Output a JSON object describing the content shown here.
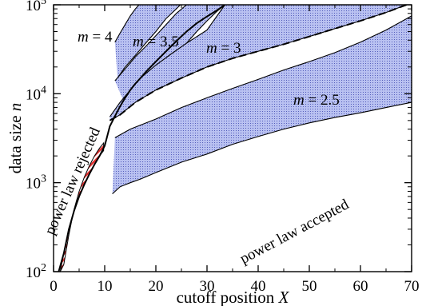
{
  "chart_data": {
    "type": "area",
    "xlabel": "cutoff position X",
    "xlabel_text": "cutoff position ",
    "xlabel_var": "X",
    "ylabel_text": "data size ",
    "ylabel_var": "n",
    "xlim": [
      0,
      70
    ],
    "ylim": [
      100,
      100000
    ],
    "yscale": "log",
    "x_ticks": [
      0,
      10,
      20,
      30,
      40,
      50,
      60,
      70
    ],
    "x_tick_labels": [
      "0",
      "10",
      "20",
      "30",
      "40",
      "50",
      "60",
      "70"
    ],
    "y_ticks": [
      100,
      1000,
      10000,
      100000
    ],
    "y_tick_base": "10",
    "y_tick_exponents": [
      "2",
      "3",
      "4",
      "5"
    ],
    "colors": {
      "band_fill": "#b8c0f0",
      "band_edge": "#1a1a8c",
      "hatch_fill": "#e03030",
      "line": "#000000"
    },
    "regions": [
      {
        "label_var": "m",
        "label_value": "= 4",
        "upper": [
          [
            12,
            38000
          ],
          [
            13,
            48000
          ],
          [
            14,
            60000
          ],
          [
            15,
            75000
          ],
          [
            16,
            90000
          ],
          [
            16.7,
            100000
          ]
        ],
        "lower": [
          [
            12.5,
            15000
          ],
          [
            14,
            20000
          ],
          [
            16,
            27000
          ],
          [
            18,
            37000
          ],
          [
            20,
            50000
          ],
          [
            22,
            70000
          ],
          [
            24,
            90000
          ],
          [
            24.8,
            100000
          ]
        ]
      },
      {
        "label_var": "m",
        "label_value": "= 3.5",
        "upper": [
          [
            12,
            14000
          ],
          [
            14,
            19000
          ],
          [
            16,
            26000
          ],
          [
            18,
            34000
          ],
          [
            20,
            45000
          ],
          [
            22,
            60000
          ],
          [
            24,
            80000
          ],
          [
            26,
            100000
          ]
        ],
        "lower": [
          [
            14,
            7500
          ],
          [
            16,
            9500
          ],
          [
            18,
            12000
          ],
          [
            20,
            16000
          ],
          [
            22,
            21000
          ],
          [
            24,
            28000
          ],
          [
            26,
            37000
          ],
          [
            28,
            50000
          ],
          [
            30,
            66000
          ],
          [
            32,
            85000
          ],
          [
            33.5,
            100000
          ]
        ]
      },
      {
        "label_var": "m",
        "label_value": "= 3",
        "upper": [
          [
            11,
            5500
          ],
          [
            13,
            8000
          ],
          [
            15,
            11000
          ],
          [
            17,
            15000
          ],
          [
            20,
            21000
          ],
          [
            23,
            28000
          ],
          [
            26,
            37000
          ],
          [
            30,
            52000
          ],
          [
            33.5,
            100000
          ]
        ],
        "lower": [
          [
            11,
            5000
          ],
          [
            13,
            5800
          ],
          [
            16,
            8000
          ],
          [
            20,
            11000
          ],
          [
            25,
            15000
          ],
          [
            30,
            20000
          ],
          [
            35,
            25000
          ],
          [
            40,
            30000
          ],
          [
            45,
            36000
          ],
          [
            50,
            44000
          ],
          [
            55,
            54000
          ],
          [
            60,
            66000
          ],
          [
            65,
            82000
          ],
          [
            69,
            100000
          ]
        ]
      },
      {
        "label_var": "m",
        "label_value": "= 2.5",
        "upper": [
          [
            12,
            3200
          ],
          [
            15,
            4000
          ],
          [
            20,
            5200
          ],
          [
            25,
            7000
          ],
          [
            30,
            9000
          ],
          [
            35,
            11500
          ],
          [
            40,
            14500
          ],
          [
            45,
            18500
          ],
          [
            50,
            23000
          ],
          [
            55,
            29000
          ],
          [
            60,
            38000
          ],
          [
            65,
            52000
          ],
          [
            70,
            75000
          ]
        ],
        "lower": [
          [
            11.5,
            750
          ],
          [
            13,
            900
          ],
          [
            15,
            1000
          ],
          [
            17,
            1100
          ],
          [
            20,
            1300
          ],
          [
            25,
            1700
          ],
          [
            30,
            2100
          ],
          [
            35,
            2700
          ],
          [
            40,
            3300
          ],
          [
            45,
            4000
          ],
          [
            50,
            4700
          ],
          [
            55,
            5400
          ],
          [
            60,
            6100
          ],
          [
            65,
            7000
          ],
          [
            70,
            8000
          ]
        ]
      }
    ],
    "hatched_region": {
      "upper": [
        [
          2,
          120
        ],
        [
          3,
          260
        ],
        [
          4,
          500
        ],
        [
          5,
          800
        ],
        [
          6,
          1150
        ],
        [
          7,
          1550
        ],
        [
          8,
          2000
        ],
        [
          9,
          2450
        ],
        [
          9.8,
          2800
        ]
      ],
      "lower": [
        [
          1.3,
          100
        ],
        [
          2,
          160
        ],
        [
          3,
          300
        ],
        [
          4,
          480
        ],
        [
          5,
          700
        ],
        [
          6,
          950
        ],
        [
          7,
          1250
        ],
        [
          8,
          1600
        ],
        [
          9,
          2000
        ],
        [
          9.8,
          2300
        ]
      ]
    },
    "boundary_line": {
      "x": [
        1,
        2,
        3,
        4,
        5,
        6,
        7,
        8,
        9,
        10,
        11,
        12,
        13,
        14,
        15,
        16,
        17,
        18,
        20,
        22,
        24,
        26,
        28,
        30,
        32,
        33.5
      ],
      "y": [
        100,
        160,
        300,
        480,
        700,
        950,
        1250,
        1600,
        2000,
        2600,
        4300,
        5600,
        7200,
        9000,
        11000,
        13000,
        15000,
        17500,
        23000,
        30000,
        39000,
        50000,
        62000,
        74000,
        87000,
        100000
      ]
    },
    "annotations": [
      {
        "text": "power law rejected",
        "x": 6.5,
        "y": 7000,
        "rotation": -66
      },
      {
        "text": "power law accepted",
        "x": 43,
        "y": 600,
        "rotation": -28
      }
    ]
  }
}
